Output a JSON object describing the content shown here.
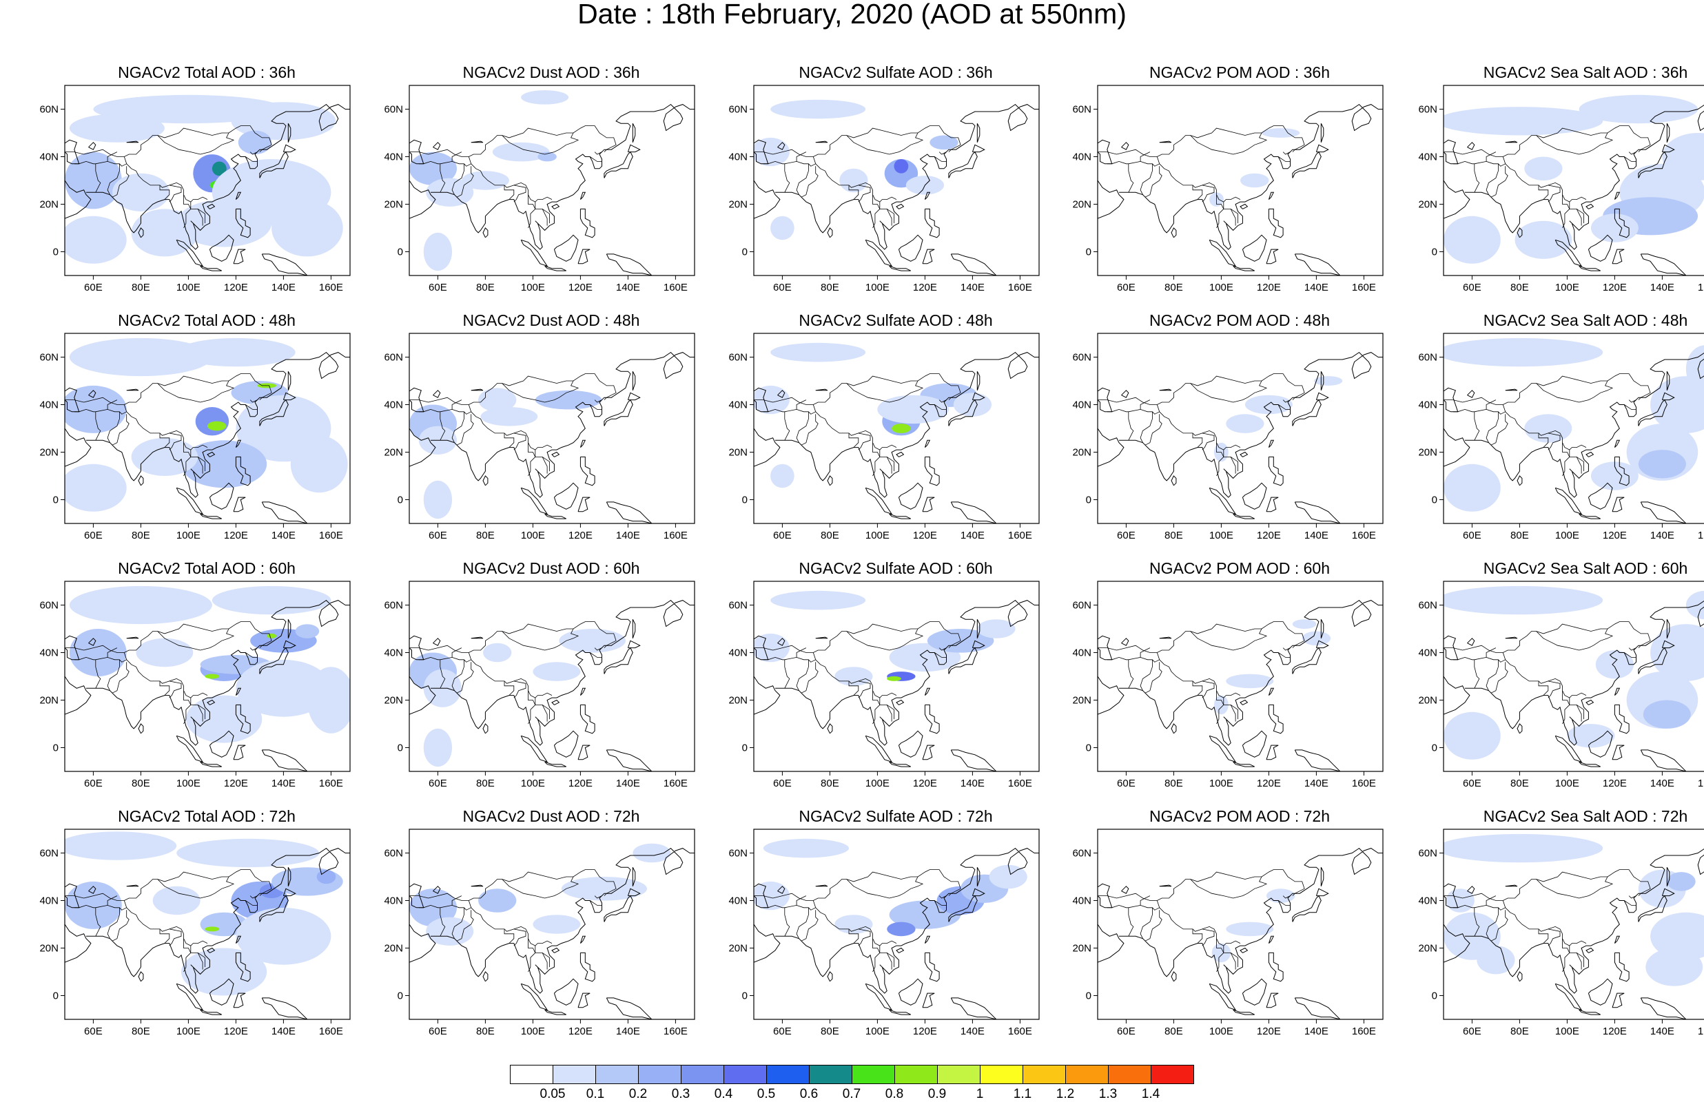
{
  "title": "Date : 18th February, 2020 (AOD at 550nm)",
  "panels": [
    {
      "title": "NGACv2 Total AOD : 36h",
      "species": "total",
      "lead": "36h"
    },
    {
      "title": "NGACv2 Dust AOD : 36h",
      "species": "dust",
      "lead": "36h"
    },
    {
      "title": "NGACv2 Sulfate AOD : 36h",
      "species": "sulfate",
      "lead": "36h"
    },
    {
      "title": "NGACv2 POM AOD : 36h",
      "species": "pom",
      "lead": "36h"
    },
    {
      "title": "NGACv2 Sea Salt AOD : 36h",
      "species": "seasalt",
      "lead": "36h"
    },
    {
      "title": "NGACv2 Total AOD : 48h",
      "species": "total",
      "lead": "48h"
    },
    {
      "title": "NGACv2 Dust AOD : 48h",
      "species": "dust",
      "lead": "48h"
    },
    {
      "title": "NGACv2 Sulfate AOD : 48h",
      "species": "sulfate",
      "lead": "48h"
    },
    {
      "title": "NGACv2 POM AOD : 48h",
      "species": "pom",
      "lead": "48h"
    },
    {
      "title": "NGACv2 Sea Salt AOD : 48h",
      "species": "seasalt",
      "lead": "48h"
    },
    {
      "title": "NGACv2 Total AOD : 60h",
      "species": "total",
      "lead": "60h"
    },
    {
      "title": "NGACv2 Dust AOD : 60h",
      "species": "dust",
      "lead": "60h"
    },
    {
      "title": "NGACv2 Sulfate AOD : 60h",
      "species": "sulfate",
      "lead": "60h"
    },
    {
      "title": "NGACv2 POM AOD : 60h",
      "species": "pom",
      "lead": "60h"
    },
    {
      "title": "NGACv2 Sea Salt AOD : 60h",
      "species": "seasalt",
      "lead": "60h"
    },
    {
      "title": "NGACv2 Total AOD : 72h",
      "species": "total",
      "lead": "72h"
    },
    {
      "title": "NGACv2 Dust AOD : 72h",
      "species": "dust",
      "lead": "72h"
    },
    {
      "title": "NGACv2 Sulfate AOD : 72h",
      "species": "sulfate",
      "lead": "72h"
    },
    {
      "title": "NGACv2 POM AOD : 72h",
      "species": "pom",
      "lead": "72h"
    },
    {
      "title": "NGACv2 Sea Salt  AOD : 72h",
      "species": "seasalt",
      "lead": "72h"
    }
  ],
  "map": {
    "lat_ticks": [
      "60N",
      "40N",
      "20N",
      "0"
    ],
    "lat_values": [
      60,
      40,
      20,
      0
    ],
    "lon_ticks": [
      "60E",
      "80E",
      "100E",
      "120E",
      "140E",
      "160E"
    ],
    "lon_values": [
      60,
      80,
      100,
      120,
      140,
      160
    ],
    "lon_range": [
      48,
      168
    ],
    "lat_range": [
      -10,
      70
    ]
  },
  "colorbar": {
    "labels": [
      "0.05",
      "0.1",
      "0.2",
      "0.3",
      "0.4",
      "0.5",
      "0.6",
      "0.7",
      "0.8",
      "0.9",
      "1",
      "1.1",
      "1.2",
      "1.3",
      "1.4"
    ],
    "colors": [
      "#ffffff",
      "#d6e2fb",
      "#b5c9f8",
      "#98b0f6",
      "#7b94f2",
      "#5f6ef0",
      "#1f5ff0",
      "#148a8a",
      "#49e31a",
      "#8ee81a",
      "#c3f542",
      "#fdfd1e",
      "#fcc714",
      "#fc9a0d",
      "#f86f0b",
      "#f41f12"
    ]
  }
}
